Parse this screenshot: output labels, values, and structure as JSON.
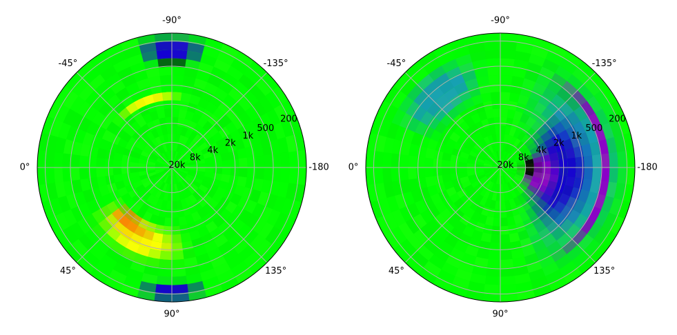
{
  "chart_data": [
    {
      "type": "polar-heatmap",
      "title": "",
      "angle_tick_labels": [
        "-90°",
        "-135°",
        "-180",
        "135°",
        "90°",
        "45°",
        "0°",
        "-45°"
      ],
      "angle_tick_values": [
        -90,
        -135,
        -180,
        135,
        90,
        45,
        0,
        -45
      ],
      "radial_axis_scale": "log (inverted: low frequency at outer edge)",
      "radial_tick_labels": [
        "200",
        "500",
        "1k",
        "2k",
        "4k",
        "8k",
        "20k"
      ],
      "radial_tick_values": [
        200,
        500,
        1000,
        2000,
        4000,
        8000,
        20000
      ],
      "radial_range": [
        20000,
        150
      ],
      "colormap": [
        "#000000",
        "#8a00c8",
        "#1400d2",
        "#0a64dc",
        "#14a0b4",
        "#1e9650",
        "#14c814",
        "#00ff00",
        "#b4ff00",
        "#ffff00",
        "#ffb400",
        "#ff3c00"
      ],
      "base_color": "#00ff00",
      "grid": true,
      "features": [
        {
          "name": "upper-band",
          "angle_center": 115,
          "angle_width": 75,
          "r_center": 0.58,
          "r_width": 0.32,
          "color": "#ffff00"
        },
        {
          "name": "upper-core",
          "angle_center": 125,
          "angle_width": 45,
          "r_center": 0.53,
          "r_width": 0.16,
          "color": "#ffb400"
        },
        {
          "name": "upper-hot",
          "angle_center": 130,
          "angle_width": 30,
          "r_center": 0.5,
          "r_width": 0.08,
          "color": "#ff3c00"
        },
        {
          "name": "arc-left",
          "angle_center": 250,
          "angle_width": 60,
          "r_center": 0.52,
          "r_width": 0.07,
          "color": "#ffff00"
        },
        {
          "name": "top-blue",
          "angle_center": 90,
          "angle_width": 30,
          "r_center": 0.92,
          "r_width": 0.16,
          "color": "#1400d2"
        },
        {
          "name": "bottom-blue",
          "angle_center": 270,
          "angle_width": 35,
          "r_center": 0.88,
          "r_width": 0.22,
          "color": "#1400d2"
        },
        {
          "name": "bottom-black",
          "angle_center": 270,
          "angle_width": 10,
          "r_center": 0.78,
          "r_width": 0.05,
          "color": "#000000"
        }
      ]
    },
    {
      "type": "polar-heatmap",
      "title": "",
      "angle_tick_labels": [
        "-90°",
        "-135°",
        "-180",
        "135°",
        "90°",
        "45°",
        "0°",
        "-45°"
      ],
      "angle_tick_values": [
        -90,
        -135,
        -180,
        135,
        90,
        45,
        0,
        -45
      ],
      "radial_axis_scale": "log (inverted: low frequency at outer edge)",
      "radial_tick_labels": [
        "200",
        "500",
        "1k",
        "2k",
        "4k",
        "8k",
        "20k"
      ],
      "radial_tick_values": [
        200,
        500,
        1000,
        2000,
        4000,
        8000,
        20000
      ],
      "radial_range": [
        20000,
        150
      ],
      "colormap": [
        "#000000",
        "#8a00c8",
        "#1400d2",
        "#0a64dc",
        "#14a0b4",
        "#1e9650",
        "#14c814",
        "#00ff00",
        "#b4ff00",
        "#ffff00",
        "#ffb400",
        "#ff3c00"
      ],
      "base_color": "#00ff00",
      "grid": true,
      "features": [
        {
          "name": "right-teal",
          "angle_center": 0,
          "angle_width": 150,
          "r_center": 0.6,
          "r_width": 0.7,
          "color": "#14a0b4"
        },
        {
          "name": "right-blue",
          "angle_center": 5,
          "angle_width": 110,
          "r_center": 0.45,
          "r_width": 0.5,
          "color": "#1400d2"
        },
        {
          "name": "right-purple",
          "angle_center": 10,
          "angle_width": 70,
          "r_center": 0.3,
          "r_width": 0.3,
          "color": "#8a00c8"
        },
        {
          "name": "right-black",
          "angle_center": 0,
          "angle_width": 40,
          "r_center": 0.22,
          "r_width": 0.14,
          "color": "#000000"
        },
        {
          "name": "outer-ring-purple",
          "angle_center": 0,
          "angle_width": 120,
          "r_center": 0.78,
          "r_width": 0.06,
          "color": "#8a00c8"
        },
        {
          "name": "outer-black",
          "angle_center": 315,
          "angle_width": 30,
          "r_center": 0.7,
          "r_width": 0.04,
          "color": "#000000"
        },
        {
          "name": "left-yellow",
          "angle_center": 150,
          "angle_width": 30,
          "r_center": 0.5,
          "r_width": 0.05,
          "color": "#ffff00"
        },
        {
          "name": "left-teal-lower",
          "angle_center": 230,
          "angle_width": 60,
          "r_center": 0.7,
          "r_width": 0.4,
          "color": "#14a0b4"
        }
      ]
    }
  ]
}
